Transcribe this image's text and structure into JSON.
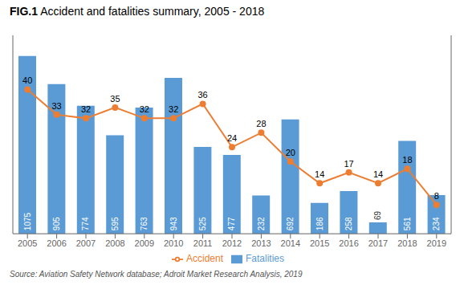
{
  "chart_data": {
    "type": "combo",
    "title": "FIG.1",
    "subtitle": "Accident and fatalities summary, 2005 - 2018",
    "annotations": [
      "Source: Aviation Safety Network database; Adroit Market Research Analysis, 2019"
    ],
    "categories": [
      "2005",
      "2006",
      "2007",
      "2008",
      "2009",
      "2010",
      "2011",
      "2012",
      "2013",
      "2014",
      "2015",
      "2016",
      "2017",
      "2018",
      "2019"
    ],
    "series": [
      {
        "name": "Fatalities",
        "type": "bar",
        "color": "#5b9bd5",
        "values": [
          1075,
          905,
          774,
          595,
          763,
          943,
          525,
          477,
          232,
          692,
          186,
          258,
          69,
          561,
          234
        ]
      },
      {
        "name": "Accident",
        "type": "line",
        "axis": "y2",
        "color": "#ed7d31",
        "marker": "circle",
        "values": [
          40,
          33,
          32,
          35,
          32,
          32,
          36,
          24,
          28,
          20,
          14,
          17,
          14,
          18,
          8
        ]
      }
    ],
    "ylim": [
      0,
      1200
    ],
    "y2lim": [
      0,
      55
    ],
    "data_labels": true,
    "tick_labels": "x",
    "grid": false,
    "legend": "bottom"
  }
}
